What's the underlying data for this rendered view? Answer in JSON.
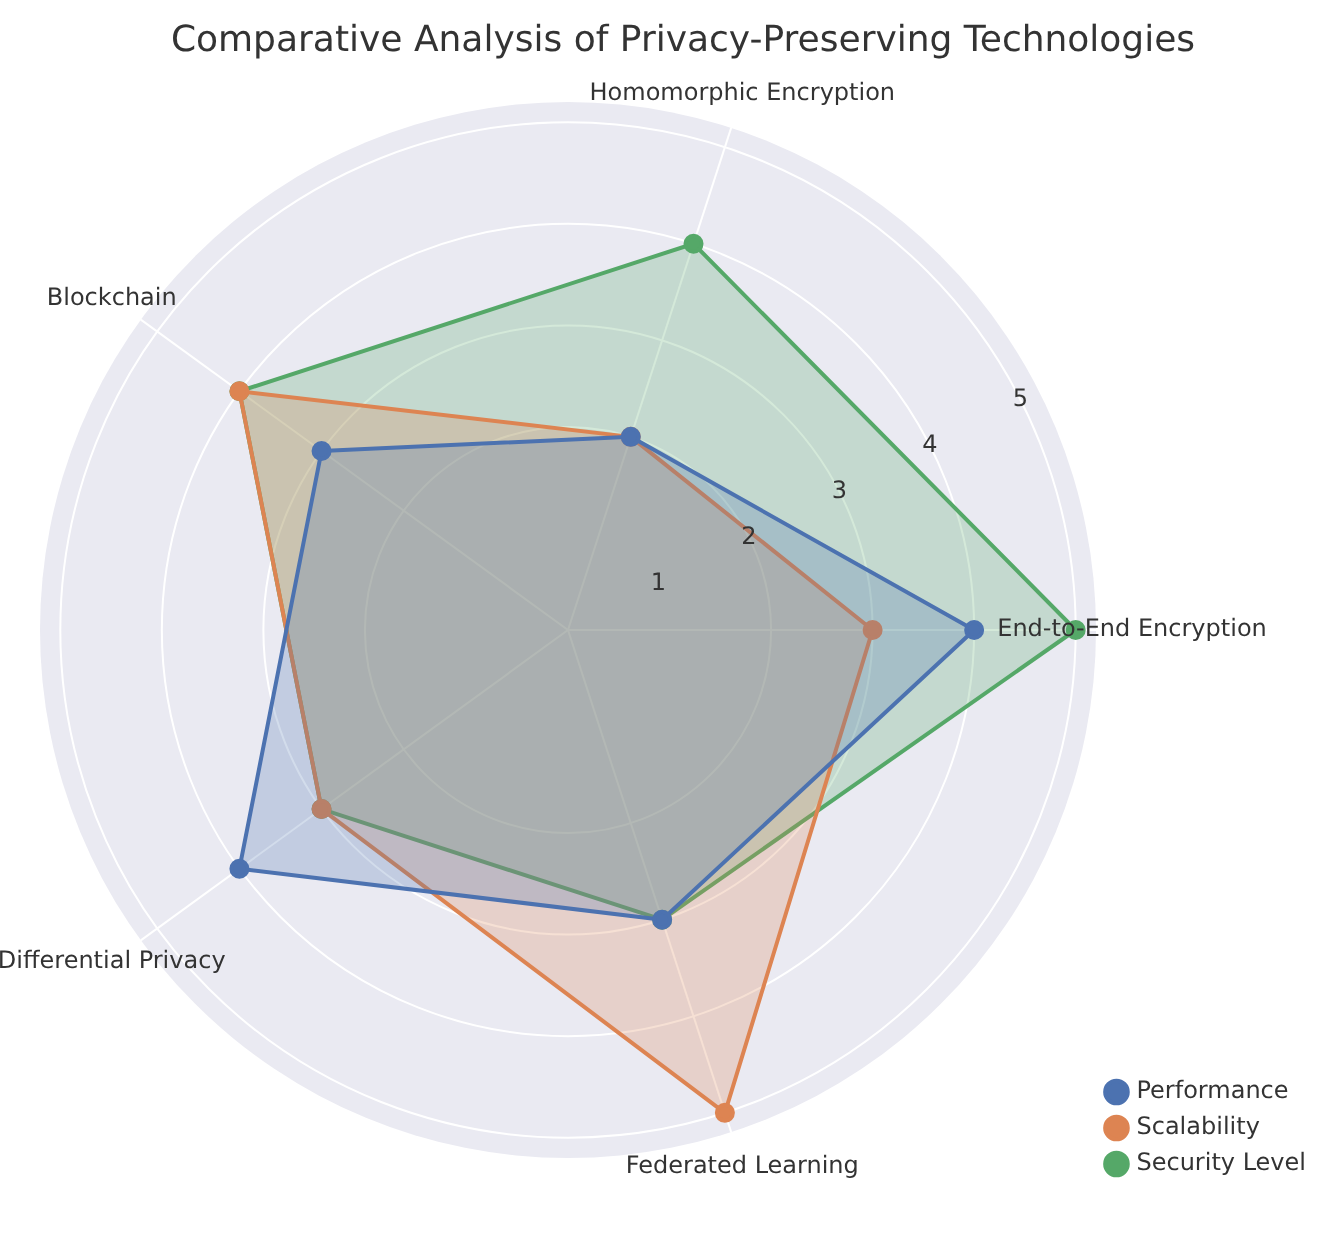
{
  "chart_data": {
    "type": "radar",
    "title": "Comparative Analysis of Privacy-Preserving Technologies",
    "categories": [
      "Homomorphic Encryption",
      "End-to-End Encryption",
      "Federated Learning",
      "Differential Privacy",
      "Blockchain"
    ],
    "series": [
      {
        "name": "Performance",
        "color": "#4c72b0",
        "values": [
          2,
          4,
          3,
          4,
          3
        ]
      },
      {
        "name": "Scalability",
        "color": "#dd8452",
        "values": [
          2,
          3,
          5,
          3,
          4
        ]
      },
      {
        "name": "Security Level",
        "color": "#55a868",
        "values": [
          4,
          5,
          3,
          3,
          4
        ]
      }
    ],
    "ylim": [
      0,
      5.2
    ],
    "yticks": [
      1,
      2,
      3,
      4,
      5
    ],
    "grid": true,
    "legend": "bottom right",
    "marker": "circle",
    "line_style": "solid"
  }
}
